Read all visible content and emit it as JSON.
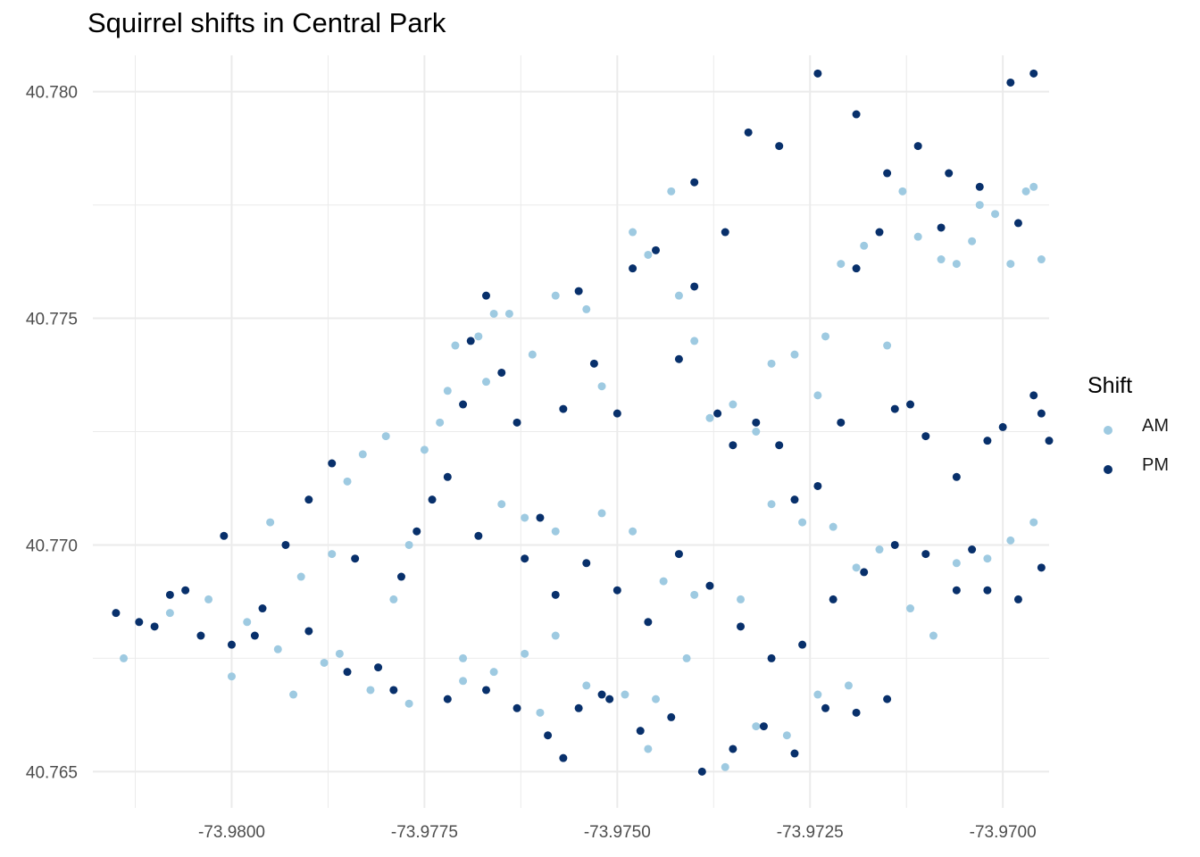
{
  "chart_data": {
    "type": "scatter",
    "title": "Squirrel shifts in Central Park",
    "xlabel": "",
    "ylabel": "",
    "xlim": [
      -73.9818,
      -73.9694
    ],
    "ylim": [
      40.7642,
      40.7808
    ],
    "x_ticks": [
      "-73.9800",
      "-73.9775",
      "-73.9750",
      "-73.9725",
      "-73.9700"
    ],
    "y_ticks": [
      "40.765",
      "40.770",
      "40.775",
      "40.780"
    ],
    "grid": true,
    "legend": {
      "title": "Shift",
      "position": "right"
    },
    "series": [
      {
        "name": "AM",
        "color": "#9ecae1",
        "points": [
          [
            -73.9814,
            40.7675
          ],
          [
            -73.9808,
            40.7685
          ],
          [
            -73.9803,
            40.7688
          ],
          [
            -73.98,
            40.7671
          ],
          [
            -73.9798,
            40.7683
          ],
          [
            -73.9795,
            40.7705
          ],
          [
            -73.9791,
            40.7693
          ],
          [
            -73.9787,
            40.7698
          ],
          [
            -73.9785,
            40.7714
          ],
          [
            -73.9783,
            40.772
          ],
          [
            -73.978,
            40.7724
          ],
          [
            -73.9792,
            40.7667
          ],
          [
            -73.9786,
            40.7676
          ],
          [
            -73.9779,
            40.7688
          ],
          [
            -73.9777,
            40.77
          ],
          [
            -73.9775,
            40.7721
          ],
          [
            -73.9773,
            40.7727
          ],
          [
            -73.9772,
            40.7734
          ],
          [
            -73.9771,
            40.7744
          ],
          [
            -73.9768,
            40.7746
          ],
          [
            -73.9767,
            40.7736
          ],
          [
            -73.9766,
            40.7751
          ],
          [
            -73.9764,
            40.7751
          ],
          [
            -73.9761,
            40.7742
          ],
          [
            -73.9758,
            40.7755
          ],
          [
            -73.9754,
            40.7752
          ],
          [
            -73.9752,
            40.7735
          ],
          [
            -73.9748,
            40.7769
          ],
          [
            -73.9746,
            40.7764
          ],
          [
            -73.9743,
            40.7778
          ],
          [
            -73.9742,
            40.7755
          ],
          [
            -73.974,
            40.7745
          ],
          [
            -73.9738,
            40.7728
          ],
          [
            -73.9735,
            40.7731
          ],
          [
            -73.9732,
            40.7725
          ],
          [
            -73.973,
            40.774
          ],
          [
            -73.9727,
            40.7742
          ],
          [
            -73.9724,
            40.7733
          ],
          [
            -73.9723,
            40.7746
          ],
          [
            -73.9721,
            40.7762
          ],
          [
            -73.9718,
            40.7766
          ],
          [
            -73.9715,
            40.7744
          ],
          [
            -73.9713,
            40.7778
          ],
          [
            -73.9711,
            40.7768
          ],
          [
            -73.9708,
            40.7763
          ],
          [
            -73.9706,
            40.7762
          ],
          [
            -73.9704,
            40.7767
          ],
          [
            -73.9703,
            40.7775
          ],
          [
            -73.9701,
            40.7773
          ],
          [
            -73.9699,
            40.7762
          ],
          [
            -73.9697,
            40.7778
          ],
          [
            -73.9696,
            40.7779
          ],
          [
            -73.9695,
            40.7763
          ],
          [
            -73.9765,
            40.7709
          ],
          [
            -73.9762,
            40.7706
          ],
          [
            -73.9758,
            40.7703
          ],
          [
            -73.9752,
            40.7707
          ],
          [
            -73.9748,
            40.7703
          ],
          [
            -73.9744,
            40.7692
          ],
          [
            -73.974,
            40.7689
          ],
          [
            -73.9734,
            40.7688
          ],
          [
            -73.973,
            40.7709
          ],
          [
            -73.9726,
            40.7705
          ],
          [
            -73.9722,
            40.7704
          ],
          [
            -73.9719,
            40.7695
          ],
          [
            -73.9716,
            40.7699
          ],
          [
            -73.9712,
            40.7686
          ],
          [
            -73.9709,
            40.768
          ],
          [
            -73.9706,
            40.7696
          ],
          [
            -73.9702,
            40.7697
          ],
          [
            -73.9699,
            40.7701
          ],
          [
            -73.9696,
            40.7705
          ],
          [
            -73.977,
            40.7675
          ],
          [
            -73.9766,
            40.7672
          ],
          [
            -73.9762,
            40.7676
          ],
          [
            -73.9758,
            40.768
          ],
          [
            -73.9754,
            40.7669
          ],
          [
            -73.9749,
            40.7667
          ],
          [
            -73.9745,
            40.7666
          ],
          [
            -73.9741,
            40.7675
          ],
          [
            -73.9736,
            40.7651
          ],
          [
            -73.9732,
            40.766
          ],
          [
            -73.9728,
            40.7658
          ],
          [
            -73.9724,
            40.7667
          ],
          [
            -73.972,
            40.7669
          ],
          [
            -73.9777,
            40.7665
          ],
          [
            -73.9782,
            40.7668
          ],
          [
            -73.9788,
            40.7674
          ],
          [
            -73.9794,
            40.7677
          ],
          [
            -73.9746,
            40.7655
          ],
          [
            -73.976,
            40.7663
          ],
          [
            -73.977,
            40.767
          ]
        ]
      },
      {
        "name": "PM",
        "color": "#08306b",
        "points": [
          [
            -73.9815,
            40.7685
          ],
          [
            -73.981,
            40.7682
          ],
          [
            -73.9806,
            40.769
          ],
          [
            -73.9801,
            40.7702
          ],
          [
            -73.9797,
            40.768
          ],
          [
            -73.9793,
            40.77
          ],
          [
            -73.979,
            40.771
          ],
          [
            -73.9787,
            40.7718
          ],
          [
            -73.9784,
            40.7697
          ],
          [
            -73.9781,
            40.7673
          ],
          [
            -73.9778,
            40.7693
          ],
          [
            -73.9776,
            40.7703
          ],
          [
            -73.9774,
            40.771
          ],
          [
            -73.9772,
            40.7715
          ],
          [
            -73.977,
            40.7731
          ],
          [
            -73.9769,
            40.7745
          ],
          [
            -73.9767,
            40.7755
          ],
          [
            -73.9765,
            40.7738
          ],
          [
            -73.9763,
            40.7727
          ],
          [
            -73.976,
            40.7706
          ],
          [
            -73.9757,
            40.773
          ],
          [
            -73.9755,
            40.7756
          ],
          [
            -73.9753,
            40.774
          ],
          [
            -73.975,
            40.7729
          ],
          [
            -73.9748,
            40.7761
          ],
          [
            -73.9745,
            40.7765
          ],
          [
            -73.9742,
            40.7741
          ],
          [
            -73.974,
            40.7757
          ],
          [
            -73.9737,
            40.7729
          ],
          [
            -73.9735,
            40.7722
          ],
          [
            -73.9732,
            40.7727
          ],
          [
            -73.9729,
            40.7722
          ],
          [
            -73.9727,
            40.771
          ],
          [
            -73.9724,
            40.7713
          ],
          [
            -73.9721,
            40.7727
          ],
          [
            -73.9719,
            40.7761
          ],
          [
            -73.9716,
            40.7769
          ],
          [
            -73.9714,
            40.773
          ],
          [
            -73.9712,
            40.7731
          ],
          [
            -73.971,
            40.7724
          ],
          [
            -73.9708,
            40.777
          ],
          [
            -73.9706,
            40.7715
          ],
          [
            -73.9704,
            40.7699
          ],
          [
            -73.9702,
            40.7723
          ],
          [
            -73.97,
            40.7726
          ],
          [
            -73.9698,
            40.7771
          ],
          [
            -73.9696,
            40.7733
          ],
          [
            -73.9695,
            40.7729
          ],
          [
            -73.9694,
            40.7723
          ],
          [
            -73.974,
            40.778
          ],
          [
            -73.9736,
            40.7769
          ],
          [
            -73.9733,
            40.7791
          ],
          [
            -73.9729,
            40.7788
          ],
          [
            -73.9724,
            40.7804
          ],
          [
            -73.9719,
            40.7795
          ],
          [
            -73.9715,
            40.7782
          ],
          [
            -73.9711,
            40.7788
          ],
          [
            -73.9707,
            40.7782
          ],
          [
            -73.9703,
            40.7779
          ],
          [
            -73.9699,
            40.7802
          ],
          [
            -73.9696,
            40.7804
          ],
          [
            -73.9768,
            40.7702
          ],
          [
            -73.9762,
            40.7697
          ],
          [
            -73.9758,
            40.7689
          ],
          [
            -73.9754,
            40.7696
          ],
          [
            -73.975,
            40.769
          ],
          [
            -73.9746,
            40.7683
          ],
          [
            -73.9742,
            40.7698
          ],
          [
            -73.9738,
            40.7691
          ],
          [
            -73.9734,
            40.7682
          ],
          [
            -73.973,
            40.7675
          ],
          [
            -73.9726,
            40.7678
          ],
          [
            -73.9722,
            40.7688
          ],
          [
            -73.9718,
            40.7694
          ],
          [
            -73.9714,
            40.77
          ],
          [
            -73.971,
            40.7698
          ],
          [
            -73.9706,
            40.769
          ],
          [
            -73.9702,
            40.769
          ],
          [
            -73.9698,
            40.7688
          ],
          [
            -73.9695,
            40.7695
          ],
          [
            -73.9772,
            40.7666
          ],
          [
            -73.9767,
            40.7668
          ],
          [
            -73.9763,
            40.7664
          ],
          [
            -73.9759,
            40.7658
          ],
          [
            -73.9755,
            40.7664
          ],
          [
            -73.9751,
            40.7666
          ],
          [
            -73.9747,
            40.7659
          ],
          [
            -73.9743,
            40.7662
          ],
          [
            -73.9739,
            40.765
          ],
          [
            -73.9735,
            40.7655
          ],
          [
            -73.9731,
            40.766
          ],
          [
            -73.9727,
            40.7654
          ],
          [
            -73.9723,
            40.7664
          ],
          [
            -73.9719,
            40.7663
          ],
          [
            -73.9715,
            40.7666
          ],
          [
            -73.9779,
            40.7668
          ],
          [
            -73.9785,
            40.7672
          ],
          [
            -73.979,
            40.7681
          ],
          [
            -73.9796,
            40.7686
          ],
          [
            -73.98,
            40.7678
          ],
          [
            -73.9804,
            40.768
          ],
          [
            -73.9808,
            40.7689
          ],
          [
            -73.9812,
            40.7683
          ],
          [
            -73.9757,
            40.7653
          ],
          [
            -73.9752,
            40.7667
          ]
        ]
      }
    ]
  }
}
